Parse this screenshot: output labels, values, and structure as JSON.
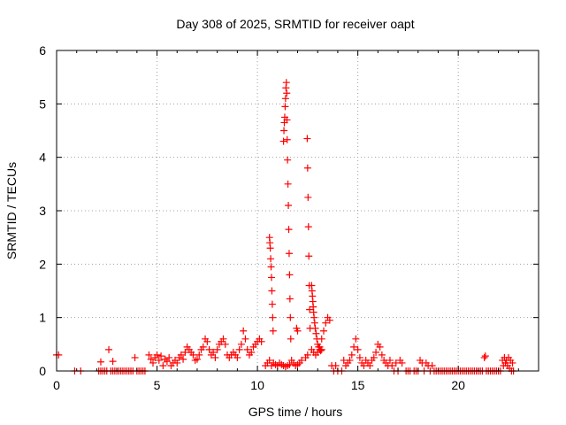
{
  "chart_data": {
    "type": "scatter",
    "title": "Day 308 of 2025, SRMTID for receiver oapt",
    "xlabel": "GPS time / hours",
    "ylabel": "SRMTID / TECUs",
    "xlim": [
      0,
      24
    ],
    "ylim": [
      0,
      6
    ],
    "x_ticks": [
      0,
      5,
      10,
      15,
      20
    ],
    "y_ticks": [
      0,
      1,
      2,
      3,
      4,
      5,
      6
    ],
    "x_tick_labels": [
      "0",
      "5",
      "10",
      "15",
      "20"
    ],
    "y_tick_labels": [
      "0",
      "1",
      "2",
      "3",
      "4",
      "5",
      "6"
    ],
    "grid": true,
    "marker": "plus",
    "series": [
      {
        "name": "oapt",
        "color": "#ff0000",
        "points": [
          [
            0.0,
            0.3
          ],
          [
            0.1,
            0.3
          ],
          [
            0.9,
            0.0
          ],
          [
            1.2,
            0.0
          ],
          [
            2.1,
            0.0
          ],
          [
            2.2,
            0.0
          ],
          [
            2.2,
            0.17
          ],
          [
            2.3,
            0.0
          ],
          [
            2.4,
            0.0
          ],
          [
            2.5,
            0.0
          ],
          [
            2.6,
            0.4
          ],
          [
            2.7,
            0.0
          ],
          [
            2.8,
            0.0
          ],
          [
            2.8,
            0.18
          ],
          [
            2.9,
            0.0
          ],
          [
            3.0,
            0.0
          ],
          [
            3.1,
            0.0
          ],
          [
            3.2,
            0.0
          ],
          [
            3.3,
            0.0
          ],
          [
            3.4,
            0.0
          ],
          [
            3.5,
            0.0
          ],
          [
            3.6,
            0.0
          ],
          [
            3.7,
            0.0
          ],
          [
            3.8,
            0.0
          ],
          [
            3.9,
            0.25
          ],
          [
            4.0,
            0.0
          ],
          [
            4.1,
            0.0
          ],
          [
            4.2,
            0.0
          ],
          [
            4.3,
            0.0
          ],
          [
            4.4,
            0.0
          ],
          [
            4.6,
            0.3
          ],
          [
            4.7,
            0.22
          ],
          [
            4.8,
            0.15
          ],
          [
            4.9,
            0.25
          ],
          [
            5.0,
            0.3
          ],
          [
            5.1,
            0.2
          ],
          [
            5.2,
            0.28
          ],
          [
            5.3,
            0.1
          ],
          [
            5.4,
            0.22
          ],
          [
            5.5,
            0.18
          ],
          [
            5.6,
            0.25
          ],
          [
            5.7,
            0.1
          ],
          [
            5.8,
            0.15
          ],
          [
            5.9,
            0.2
          ],
          [
            6.0,
            0.15
          ],
          [
            6.1,
            0.25
          ],
          [
            6.2,
            0.3
          ],
          [
            6.3,
            0.22
          ],
          [
            6.4,
            0.35
          ],
          [
            6.5,
            0.45
          ],
          [
            6.6,
            0.4
          ],
          [
            6.7,
            0.35
          ],
          [
            6.8,
            0.3
          ],
          [
            6.9,
            0.2
          ],
          [
            7.0,
            0.22
          ],
          [
            7.1,
            0.3
          ],
          [
            7.2,
            0.4
          ],
          [
            7.3,
            0.45
          ],
          [
            7.4,
            0.6
          ],
          [
            7.5,
            0.55
          ],
          [
            7.6,
            0.4
          ],
          [
            7.7,
            0.3
          ],
          [
            7.8,
            0.35
          ],
          [
            7.9,
            0.25
          ],
          [
            8.0,
            0.4
          ],
          [
            8.1,
            0.5
          ],
          [
            8.2,
            0.55
          ],
          [
            8.3,
            0.6
          ],
          [
            8.4,
            0.5
          ],
          [
            8.5,
            0.3
          ],
          [
            8.6,
            0.25
          ],
          [
            8.7,
            0.3
          ],
          [
            8.8,
            0.35
          ],
          [
            8.9,
            0.3
          ],
          [
            9.0,
            0.25
          ],
          [
            9.1,
            0.4
          ],
          [
            9.2,
            0.5
          ],
          [
            9.3,
            0.75
          ],
          [
            9.4,
            0.6
          ],
          [
            9.5,
            0.4
          ],
          [
            9.6,
            0.3
          ],
          [
            9.7,
            0.35
          ],
          [
            9.8,
            0.45
          ],
          [
            9.9,
            0.5
          ],
          [
            10.0,
            0.55
          ],
          [
            10.1,
            0.6
          ],
          [
            10.2,
            0.55
          ],
          [
            10.4,
            0.1
          ],
          [
            10.5,
            0.15
          ],
          [
            10.6,
            0.2
          ],
          [
            10.7,
            0.1
          ],
          [
            10.8,
            0.15
          ],
          [
            10.9,
            0.12
          ],
          [
            11.0,
            0.1
          ],
          [
            11.1,
            0.15
          ],
          [
            11.2,
            0.12
          ],
          [
            11.3,
            0.1
          ],
          [
            11.4,
            0.08
          ],
          [
            11.5,
            0.1
          ],
          [
            11.6,
            0.12
          ],
          [
            11.7,
            0.2
          ],
          [
            11.8,
            0.15
          ],
          [
            11.9,
            0.1
          ],
          [
            12.0,
            0.12
          ],
          [
            12.1,
            0.15
          ],
          [
            12.2,
            0.2
          ],
          [
            12.4,
            0.25
          ],
          [
            12.5,
            0.3
          ],
          [
            12.7,
            0.4
          ],
          [
            12.8,
            0.35
          ],
          [
            12.9,
            0.3
          ],
          [
            13.0,
            0.35
          ],
          [
            13.1,
            0.45
          ],
          [
            13.2,
            0.6
          ],
          [
            13.3,
            0.75
          ],
          [
            13.4,
            0.9
          ],
          [
            13.5,
            1.0
          ],
          [
            13.6,
            0.95
          ],
          [
            13.7,
            0.1
          ],
          [
            13.8,
            0.0
          ],
          [
            13.9,
            0.1
          ],
          [
            14.0,
            0.0
          ],
          [
            14.2,
            0.0
          ],
          [
            14.3,
            0.2
          ],
          [
            14.4,
            0.1
          ],
          [
            14.5,
            0.15
          ],
          [
            14.6,
            0.2
          ],
          [
            14.7,
            0.3
          ],
          [
            14.8,
            0.45
          ],
          [
            14.9,
            0.6
          ],
          [
            15.0,
            0.4
          ],
          [
            15.1,
            0.25
          ],
          [
            15.2,
            0.15
          ],
          [
            15.3,
            0.1
          ],
          [
            15.4,
            0.2
          ],
          [
            15.5,
            0.15
          ],
          [
            15.6,
            0.1
          ],
          [
            15.7,
            0.2
          ],
          [
            15.8,
            0.25
          ],
          [
            15.9,
            0.35
          ],
          [
            16.0,
            0.5
          ],
          [
            16.1,
            0.45
          ],
          [
            16.2,
            0.3
          ],
          [
            16.3,
            0.2
          ],
          [
            16.4,
            0.15
          ],
          [
            16.5,
            0.1
          ],
          [
            16.6,
            0.2
          ],
          [
            16.7,
            0.1
          ],
          [
            16.8,
            0.0
          ],
          [
            16.9,
            0.15
          ],
          [
            17.0,
            0.0
          ],
          [
            17.1,
            0.2
          ],
          [
            17.2,
            0.15
          ],
          [
            17.4,
            0.0
          ],
          [
            17.5,
            0.0
          ],
          [
            17.6,
            0.0
          ],
          [
            17.8,
            0.0
          ],
          [
            17.9,
            0.0
          ],
          [
            18.0,
            0.0
          ],
          [
            18.1,
            0.2
          ],
          [
            18.2,
            0.15
          ],
          [
            18.3,
            0.0
          ],
          [
            18.4,
            0.15
          ],
          [
            18.5,
            0.1
          ],
          [
            18.6,
            0.0
          ],
          [
            18.7,
            0.1
          ],
          [
            18.8,
            0.0
          ],
          [
            18.9,
            0.0
          ],
          [
            19.0,
            0.0
          ],
          [
            19.1,
            0.0
          ],
          [
            19.2,
            0.0
          ],
          [
            19.3,
            0.0
          ],
          [
            19.4,
            0.0
          ],
          [
            19.5,
            0.0
          ],
          [
            19.6,
            0.0
          ],
          [
            19.7,
            0.0
          ],
          [
            19.8,
            0.0
          ],
          [
            19.9,
            0.0
          ],
          [
            20.0,
            0.0
          ],
          [
            20.1,
            0.0
          ],
          [
            20.2,
            0.0
          ],
          [
            20.3,
            0.0
          ],
          [
            20.4,
            0.0
          ],
          [
            20.5,
            0.0
          ],
          [
            20.6,
            0.0
          ],
          [
            20.7,
            0.0
          ],
          [
            20.8,
            0.0
          ],
          [
            20.9,
            0.0
          ],
          [
            21.0,
            0.0
          ],
          [
            21.1,
            0.0
          ],
          [
            21.2,
            0.0
          ],
          [
            21.3,
            0.25
          ],
          [
            21.35,
            0.28
          ],
          [
            21.4,
            0.0
          ],
          [
            21.5,
            0.0
          ],
          [
            21.6,
            0.0
          ],
          [
            21.7,
            0.0
          ],
          [
            21.8,
            0.0
          ],
          [
            21.9,
            0.0
          ],
          [
            22.0,
            0.0
          ],
          [
            22.1,
            0.0
          ],
          [
            22.2,
            0.2
          ],
          [
            22.25,
            0.1
          ],
          [
            22.3,
            0.25
          ],
          [
            22.35,
            0.15
          ],
          [
            22.4,
            0.2
          ],
          [
            22.45,
            0.1
          ],
          [
            22.5,
            0.25
          ],
          [
            22.55,
            0.05
          ],
          [
            22.6,
            0.2
          ],
          [
            22.65,
            0.0
          ],
          [
            22.7,
            0.15
          ],
          [
            22.75,
            0.0
          ],
          [
            10.6,
            2.5
          ],
          [
            10.62,
            2.4
          ],
          [
            10.64,
            2.3
          ],
          [
            10.66,
            2.1
          ],
          [
            10.68,
            1.95
          ],
          [
            10.7,
            1.75
          ],
          [
            10.72,
            1.5
          ],
          [
            10.74,
            1.25
          ],
          [
            10.76,
            1.0
          ],
          [
            10.78,
            0.75
          ],
          [
            11.3,
            4.3
          ],
          [
            11.32,
            4.5
          ],
          [
            11.34,
            4.65
          ],
          [
            11.36,
            4.75
          ],
          [
            11.38,
            4.95
          ],
          [
            11.4,
            5.1
          ],
          [
            11.42,
            5.3
          ],
          [
            11.44,
            5.4
          ],
          [
            11.46,
            5.2
          ],
          [
            11.47,
            4.7
          ],
          [
            11.48,
            4.33
          ],
          [
            11.5,
            3.95
          ],
          [
            11.52,
            3.5
          ],
          [
            11.54,
            3.1
          ],
          [
            11.56,
            2.65
          ],
          [
            11.58,
            2.2
          ],
          [
            11.6,
            1.8
          ],
          [
            11.62,
            1.35
          ],
          [
            11.64,
            1.0
          ],
          [
            11.66,
            0.6
          ],
          [
            11.95,
            0.8
          ],
          [
            12.0,
            0.75
          ],
          [
            12.48,
            4.35
          ],
          [
            12.5,
            3.8
          ],
          [
            12.52,
            3.25
          ],
          [
            12.54,
            2.7
          ],
          [
            12.56,
            2.15
          ],
          [
            12.58,
            1.6
          ],
          [
            12.6,
            1.15
          ],
          [
            12.62,
            0.8
          ],
          [
            12.7,
            1.6
          ],
          [
            12.72,
            1.5
          ],
          [
            12.74,
            1.4
          ],
          [
            12.76,
            1.3
          ],
          [
            12.78,
            1.2
          ],
          [
            12.8,
            1.1
          ],
          [
            12.82,
            1.0
          ],
          [
            12.85,
            0.9
          ],
          [
            12.88,
            0.8
          ],
          [
            12.92,
            0.7
          ],
          [
            12.96,
            0.6
          ],
          [
            13.0,
            0.5
          ],
          [
            13.05,
            0.45
          ],
          [
            13.1,
            0.4
          ],
          [
            13.15,
            0.38
          ],
          [
            13.2,
            0.4
          ]
        ]
      }
    ]
  }
}
